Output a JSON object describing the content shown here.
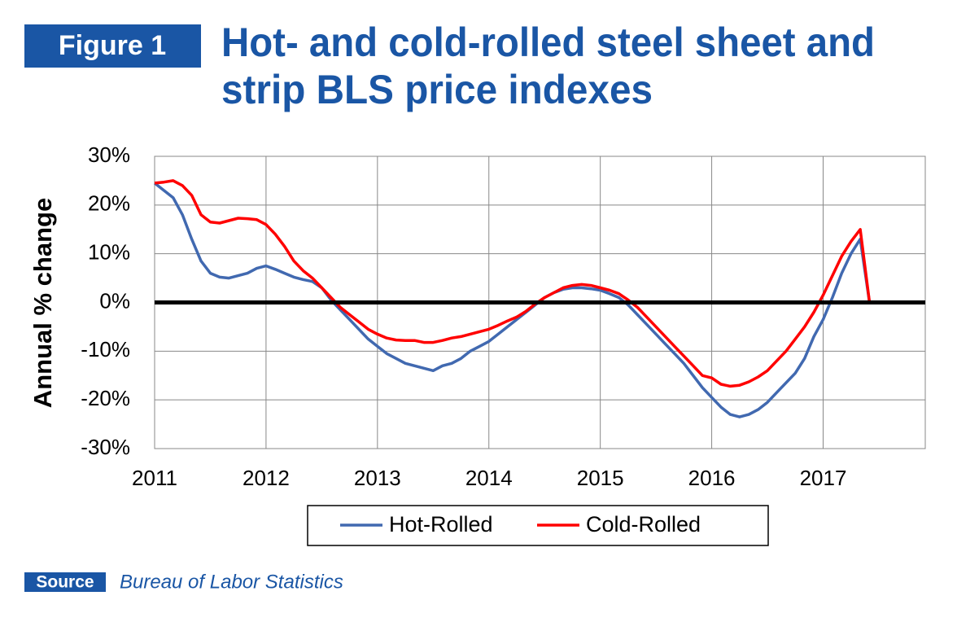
{
  "figure_label": "Figure 1",
  "source_label": "Source",
  "source_text": "Bureau of Labor Statistics",
  "chart_data": {
    "type": "line",
    "title": [
      "Hot- and cold-rolled steel sheet and",
      "strip BLS price indexes"
    ],
    "y_label": "Annual %  change",
    "categories": [
      "2011",
      null,
      null,
      null,
      null,
      null,
      null,
      null,
      null,
      null,
      null,
      null,
      "2012",
      null,
      null,
      null,
      null,
      null,
      null,
      null,
      null,
      null,
      null,
      null,
      "2013",
      null,
      null,
      null,
      null,
      null,
      null,
      null,
      null,
      null,
      null,
      null,
      "2014",
      null,
      null,
      null,
      null,
      null,
      null,
      null,
      null,
      null,
      null,
      null,
      "2015",
      null,
      null,
      null,
      null,
      null,
      null,
      null,
      null,
      null,
      null,
      null,
      "2016",
      null,
      null,
      null,
      null,
      null,
      null,
      null,
      null,
      null,
      null,
      null,
      "2017",
      null,
      null,
      null,
      null,
      null,
      null,
      null,
      null,
      null,
      null,
      null
    ],
    "series": [
      {
        "name": "Hot-Rolled",
        "color": "#4169b0",
        "values": [
          24.5,
          23,
          21.5,
          18,
          13,
          8.5,
          6,
          5.2,
          5,
          5.5,
          6,
          7,
          7.5,
          6.8,
          6,
          5.2,
          4.7,
          4.3,
          3,
          0.5,
          -1.5,
          -3.5,
          -5.5,
          -7.5,
          -9,
          -10.5,
          -11.5,
          -12.5,
          -13,
          -13.5,
          -14,
          -13,
          -12.5,
          -11.5,
          -10,
          -9,
          -8,
          -6.5,
          -5,
          -3.5,
          -2,
          -0.5,
          1,
          2,
          2.7,
          3,
          3,
          2.8,
          2.5,
          1.8,
          1,
          -0.5,
          -2.5,
          -4.5,
          -6.5,
          -8.5,
          -10.5,
          -12.5,
          -15,
          -17.5,
          -19.5,
          -21.5,
          -23,
          -23.5,
          -23,
          -22,
          -20.5,
          -18.5,
          -16.5,
          -14.5,
          -11.5,
          -7,
          -3.5,
          1,
          6,
          10,
          13,
          0,
          0,
          0,
          0,
          0,
          0,
          0
        ]
      },
      {
        "name": "Cold-Rolled",
        "color": "#ff0000",
        "values": [
          24.5,
          24.7,
          25,
          24,
          22,
          18,
          16.5,
          16.3,
          16.8,
          17.3,
          17.2,
          17,
          16,
          14,
          11.5,
          8.5,
          6.5,
          5,
          3,
          1,
          -1,
          -2.5,
          -4,
          -5.5,
          -6.5,
          -7.3,
          -7.7,
          -7.8,
          -7.8,
          -8.2,
          -8.2,
          -7.8,
          -7.3,
          -7,
          -6.5,
          -6,
          -5.5,
          -4.7,
          -3.8,
          -3,
          -1.8,
          -0.3,
          1,
          2,
          3,
          3.5,
          3.7,
          3.5,
          3,
          2.5,
          1.8,
          0.5,
          -1,
          -3,
          -5,
          -7,
          -9,
          -11,
          -13,
          -15,
          -15.5,
          -16.8,
          -17.2,
          -17,
          -16.3,
          -15.3,
          -14,
          -12,
          -10,
          -7.5,
          -5,
          -2,
          1.5,
          5.5,
          9.5,
          12.5,
          15,
          0,
          0,
          0,
          0,
          0,
          0,
          0
        ]
      }
    ],
    "ylim": [
      -30,
      30
    ],
    "yticks": [
      {
        "value": -30,
        "label": "-30%"
      },
      {
        "value": -20,
        "label": "-20%"
      },
      {
        "value": -10,
        "label": "-10%"
      },
      {
        "value": 0,
        "label": "0%"
      },
      {
        "value": 10,
        "label": "10%"
      },
      {
        "value": 20,
        "label": "20%"
      },
      {
        "value": 30,
        "label": "30%"
      }
    ],
    "grid": true,
    "legend": "bottom"
  }
}
